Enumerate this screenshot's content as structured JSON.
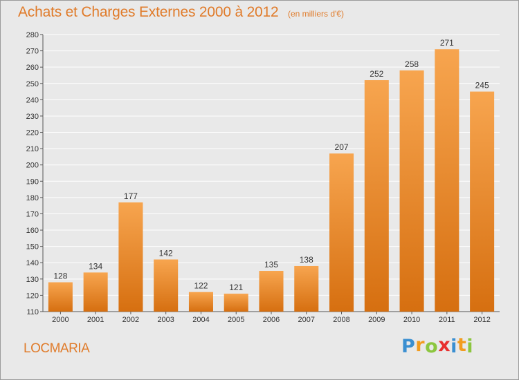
{
  "header": {
    "title": "Achats et Charges Externes 2000 à 2012",
    "subtitle": "(en milliers d'€)"
  },
  "footer": {
    "commune": "LOCMARIA",
    "logo": {
      "letters": [
        "P",
        "r",
        "o",
        "x",
        "i",
        "t",
        "i"
      ],
      "colors": [
        "#3a8fd1",
        "#f29c1f",
        "#8cc63f",
        "#e8302f",
        "#3a8fd1",
        "#f29c1f",
        "#8cc63f"
      ]
    }
  },
  "chart_data": {
    "type": "bar",
    "title": "Achats et Charges Externes 2000 à 2012",
    "subtitle": "(en milliers d'€)",
    "categories": [
      "2000",
      "2001",
      "2002",
      "2003",
      "2004",
      "2005",
      "2006",
      "2007",
      "2008",
      "2009",
      "2010",
      "2011",
      "2012"
    ],
    "values": [
      128,
      134,
      177,
      142,
      122,
      121,
      135,
      138,
      207,
      252,
      258,
      271,
      245
    ],
    "ylim": [
      110,
      280
    ],
    "yticks": [
      110,
      120,
      130,
      140,
      150,
      160,
      170,
      180,
      190,
      200,
      210,
      220,
      230,
      240,
      250,
      260,
      270,
      280
    ],
    "grid": true,
    "legend": "none",
    "colors": {
      "bar_light": "#f7a54f",
      "bar_dark": "#d66f10",
      "grid": "#ffffff",
      "text": "#333333"
    }
  }
}
